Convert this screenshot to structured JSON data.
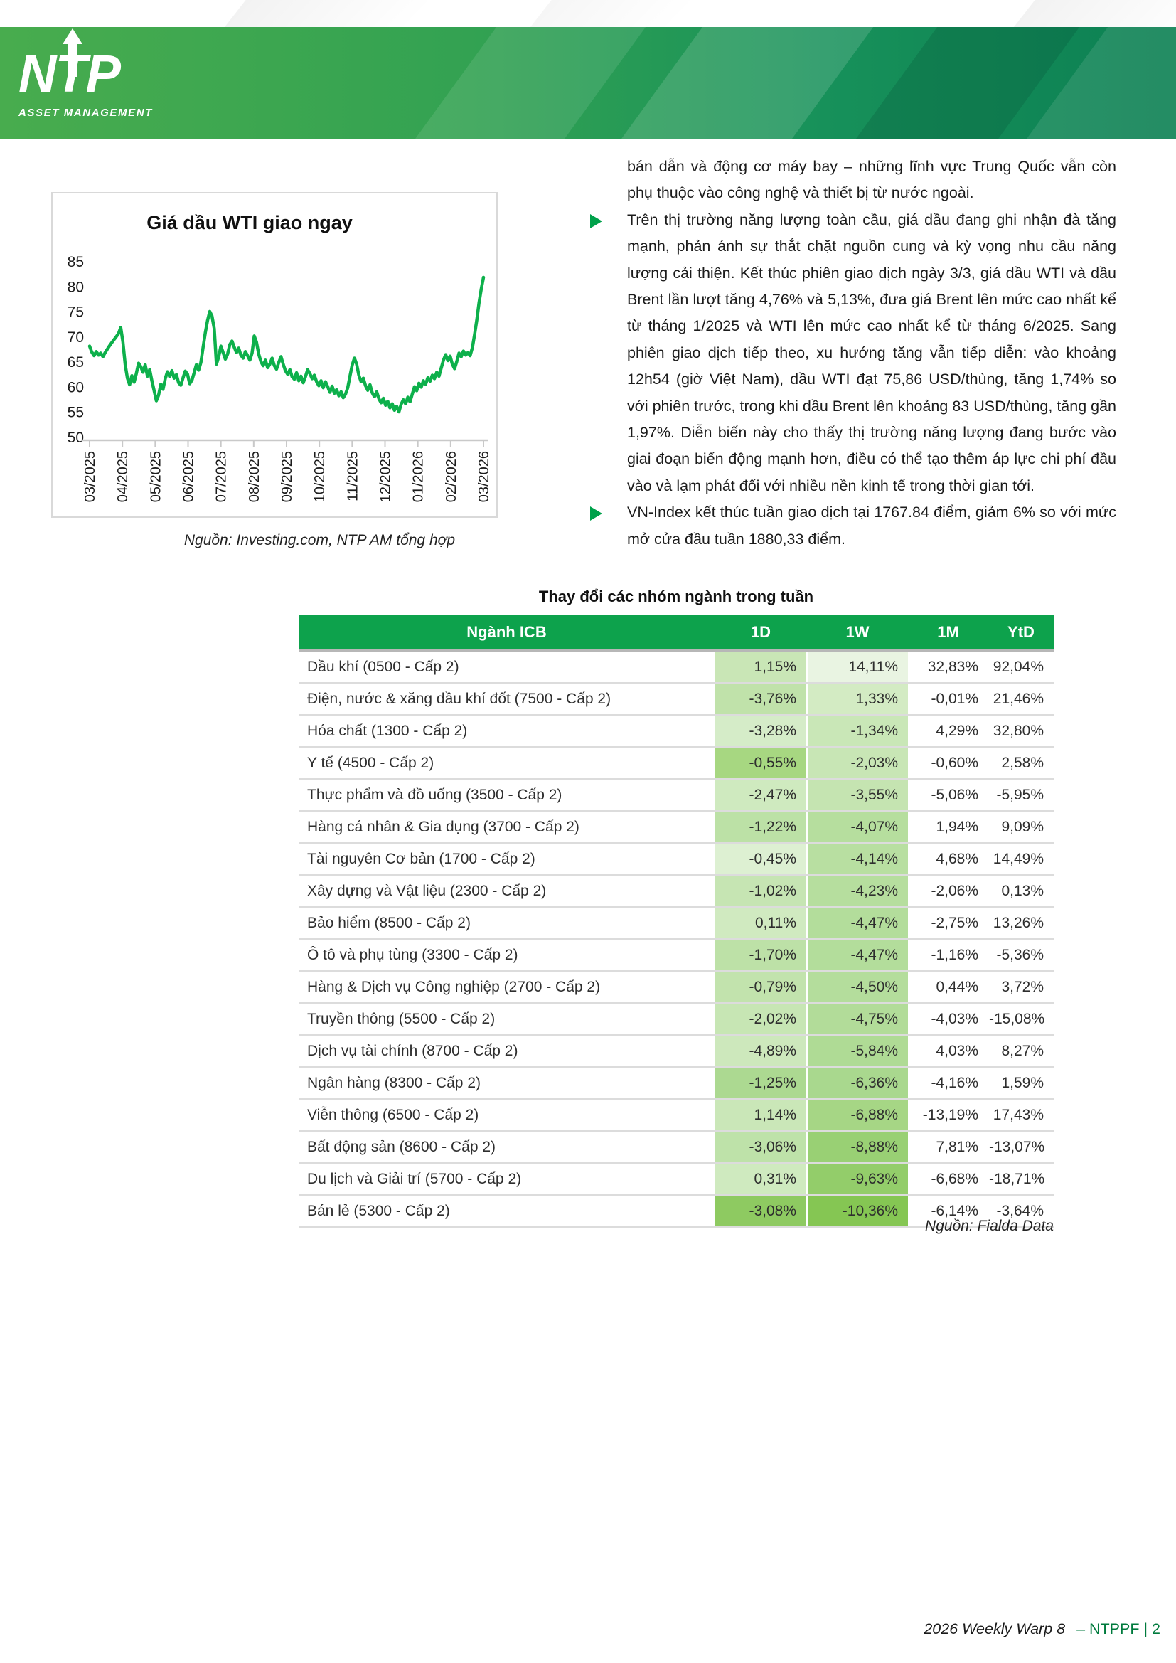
{
  "header": {
    "logo_text": "NTP",
    "logo_subtext": "ASSET MANAGEMENT"
  },
  "right_column": {
    "paragraphs": [
      {
        "bullet": false,
        "text": "bán dẫn và động cơ máy bay – những lĩnh vực Trung Quốc vẫn còn phụ thuộc vào công nghệ và thiết bị từ nước ngoài."
      },
      {
        "bullet": true,
        "text": "Trên thị trường năng lượng toàn cầu, giá dầu đang ghi nhận đà tăng mạnh, phản ánh sự thắt chặt nguồn cung và kỳ vọng nhu cầu năng lượng cải thiện. Kết thúc phiên giao dịch ngày 3/3, giá dầu WTI và dầu Brent lần lượt tăng 4,76% và 5,13%, đưa giá Brent lên mức cao nhất kể từ tháng 1/2025 và WTI lên mức cao nhất kể từ tháng 6/2025. Sang phiên giao dịch tiếp theo, xu hướng tăng vẫn tiếp diễn: vào khoảng 12h54 (giờ Việt Nam), dầu WTI đạt 75,86 USD/thùng, tăng 1,74% so với phiên trước, trong khi dầu Brent lên khoảng 83 USD/thùng, tăng gần 1,97%. Diễn biến này cho thấy thị trường năng lượng đang bước vào giai đoạn biến động mạnh hơn, điều có thể tạo thêm áp lực chi phí đầu vào và lạm phát đối với nhiều nền kinh tế trong thời gian tới."
      },
      {
        "bullet": true,
        "text": "VN-Index kết thúc tuần giao dịch tại 1767.84 điểm, giảm 6% so với mức mở cửa đầu tuần 1880,33 điểm."
      }
    ]
  },
  "chart_data": {
    "type": "line",
    "title": "Giá dầu WTI giao ngay",
    "source": "Nguồn: Investing.com, NTP AM tổng hợp",
    "x_labels": [
      "03/2025",
      "04/2025",
      "05/2025",
      "06/2025",
      "07/2025",
      "08/2025",
      "09/2025",
      "10/2025",
      "11/2025",
      "12/2025",
      "01/2026",
      "02/2026",
      "03/2026"
    ],
    "yticks": [
      85,
      80,
      75,
      70,
      65,
      60,
      55,
      50
    ],
    "ylim": [
      50,
      85
    ],
    "grid": false,
    "line_color": "#0db04b",
    "values": [
      68.2,
      67.0,
      66.3,
      67.1,
      66.4,
      66.8,
      66.1,
      66.9,
      67.6,
      68.3,
      68.9,
      69.5,
      70.1,
      70.7,
      71.9,
      69.0,
      64.5,
      61.8,
      60.5,
      62.3,
      61.0,
      62.7,
      64.8,
      64.1,
      63.0,
      64.5,
      62.2,
      63.5,
      61.3,
      59.3,
      57.3,
      58.4,
      60.6,
      59.6,
      61.7,
      63.1,
      62.1,
      63.3,
      61.8,
      62.5,
      60.9,
      60.4,
      61.9,
      63.2,
      62.6,
      60.7,
      61.4,
      62.9,
      64.5,
      63.4,
      64.9,
      67.9,
      70.9,
      73.3,
      75.1,
      74.2,
      71.7,
      64.6,
      66.0,
      68.2,
      66.9,
      65.6,
      66.6,
      68.5,
      69.2,
      68.0,
      66.9,
      67.8,
      66.4,
      65.8,
      67.1,
      66.3,
      65.4,
      66.8,
      70.2,
      69.0,
      66.6,
      65.1,
      64.3,
      65.4,
      63.9,
      64.6,
      65.8,
      64.3,
      63.6,
      64.9,
      66.1,
      64.6,
      63.3,
      62.6,
      63.5,
      62.1,
      61.6,
      62.9,
      61.3,
      62.2,
      60.9,
      62.1,
      63.5,
      62.7,
      61.7,
      62.4,
      61.1,
      60.3,
      61.3,
      59.9,
      61.1,
      60.1,
      59.0,
      60.2,
      58.8,
      59.5,
      58.3,
      59.1,
      57.9,
      58.6,
      59.9,
      62.2,
      64.4,
      65.8,
      64.6,
      62.4,
      61.1,
      61.8,
      60.3,
      59.4,
      60.5,
      58.9,
      58.1,
      59.1,
      57.7,
      56.9,
      57.8,
      56.4,
      57.2,
      55.9,
      56.7,
      55.4,
      56.2,
      55.1,
      56.6,
      57.5,
      56.7,
      58.0,
      57.1,
      58.6,
      60.1,
      59.3,
      60.8,
      60.0,
      61.3,
      60.6,
      61.9,
      61.2,
      62.4,
      61.7,
      63.0,
      62.2,
      63.8,
      65.4,
      66.5,
      65.3,
      66.2,
      64.6,
      63.7,
      65.1,
      66.8,
      66.1,
      67.2,
      66.4,
      66.9,
      66.3,
      67.9,
      70.5,
      73.4,
      76.8,
      79.6,
      81.9
    ]
  },
  "table": {
    "title": "Thay đổi các nhóm ngành trong tuần",
    "columns": [
      "Ngành ICB",
      "1D",
      "1W",
      "1M",
      "YtD"
    ],
    "source": "Nguồn: Fialda Data",
    "rows": [
      {
        "name": "Dầu khí (0500 - Cấp 2)",
        "d1": "1,15%",
        "w1": "14,11%",
        "m1": "32,83%",
        "ytd": "92,04%",
        "d1_bg": "#c9e6b6",
        "w1_bg": "#e9f4e2"
      },
      {
        "name": "Điện, nước & xăng dầu khí đốt (7500 - Cấp 2)",
        "d1": "-3,76%",
        "w1": "1,33%",
        "m1": "-0,01%",
        "ytd": "21,46%",
        "d1_bg": "#c0e2aa",
        "w1_bg": "#d3ebc3"
      },
      {
        "name": "Hóa chất (1300 - Cấp 2)",
        "d1": "-3,28%",
        "w1": "-1,34%",
        "m1": "4,29%",
        "ytd": "32,80%",
        "d1_bg": "#d5ecc8",
        "w1_bg": "#c9e7b7"
      },
      {
        "name": "Y tế (4500 - Cấp 2)",
        "d1": "-0,55%",
        "w1": "-2,03%",
        "m1": "-0,60%",
        "ytd": "2,58%",
        "d1_bg": "#a7d781",
        "w1_bg": "#c8e6b5"
      },
      {
        "name": "Thực phẩm và đồ uống (3500 - Cấp 2)",
        "d1": "-2,47%",
        "w1": "-3,55%",
        "m1": "-5,06%",
        "ytd": "-5,95%",
        "d1_bg": "#cfeabf",
        "w1_bg": "#c5e4b1"
      },
      {
        "name": "Hàng cá nhân & Gia dụng (3700 - Cấp 2)",
        "d1": "-1,22%",
        "w1": "-4,07%",
        "m1": "1,94%",
        "ytd": "9,09%",
        "d1_bg": "#bce1a6",
        "w1_bg": "#b6de9e"
      },
      {
        "name": "Tài nguyên Cơ bản (1700 - Cấp 2)",
        "d1": "-0,45%",
        "w1": "-4,14%",
        "m1": "4,68%",
        "ytd": "14,49%",
        "d1_bg": "#ddf0d2",
        "w1_bg": "#b8dfa1"
      },
      {
        "name": "Xây dựng và Vật liệu (2300 - Cấp 2)",
        "d1": "-1,02%",
        "w1": "-4,23%",
        "m1": "-2,06%",
        "ytd": "0,13%",
        "d1_bg": "#c6e5b3",
        "w1_bg": "#b6de9e"
      },
      {
        "name": "Bảo hiểm (8500 - Cấp 2)",
        "d1": "0,11%",
        "w1": "-4,47%",
        "m1": "-2,75%",
        "ytd": "13,26%",
        "d1_bg": "#d0eac0",
        "w1_bg": "#b3dd9b"
      },
      {
        "name": "Ô tô và phụ tùng (3300 - Cấp 2)",
        "d1": "-1,70%",
        "w1": "-4,47%",
        "m1": "-1,16%",
        "ytd": "-5,36%",
        "d1_bg": "#bde1a7",
        "w1_bg": "#b3dd9b"
      },
      {
        "name": "Hàng & Dịch vụ Công nghiệp (2700 - Cấp 2)",
        "d1": "-0,79%",
        "w1": "-4,50%",
        "m1": "0,44%",
        "ytd": "3,72%",
        "d1_bg": "#c2e3ad",
        "w1_bg": "#b4dd9c"
      },
      {
        "name": "Truyền thông (5500 - Cấp 2)",
        "d1": "-2,02%",
        "w1": "-4,75%",
        "m1": "-4,03%",
        "ytd": "-15,08%",
        "d1_bg": "#c7e6b4",
        "w1_bg": "#b2dc99"
      },
      {
        "name": "Dịch vụ tài chính (8700 - Cấp 2)",
        "d1": "-4,89%",
        "w1": "-5,84%",
        "m1": "4,03%",
        "ytd": "8,27%",
        "d1_bg": "#cde8bc",
        "w1_bg": "#afdb95"
      },
      {
        "name": "Ngân hàng (8300 - Cấp 2)",
        "d1": "-1,25%",
        "w1": "-6,36%",
        "m1": "-4,16%",
        "ytd": "1,59%",
        "d1_bg": "#acd991",
        "w1_bg": "#a9d88e"
      },
      {
        "name": "Viễn thông (6500 - Cấp 2)",
        "d1": "1,14%",
        "w1": "-6,88%",
        "m1": "-13,19%",
        "ytd": "17,43%",
        "d1_bg": "#cae7b8",
        "w1_bg": "#a6d685"
      },
      {
        "name": "Bất động sản (8600 - Cấp 2)",
        "d1": "-3,06%",
        "w1": "-8,88%",
        "m1": "7,81%",
        "ytd": "-13,07%",
        "d1_bg": "#bee2a9",
        "w1_bg": "#99d074"
      },
      {
        "name": "Du lịch và Giải trí (5700 - Cấp 2)",
        "d1": "0,31%",
        "w1": "-9,63%",
        "m1": "-6,68%",
        "ytd": "-18,71%",
        "d1_bg": "#cfeabf",
        "w1_bg": "#93cd6a"
      },
      {
        "name": "Bán lẻ (5300 - Cấp 2)",
        "d1": "-3,08%",
        "w1": "-10,36%",
        "m1": "-6,14%",
        "ytd": "-3,64%",
        "d1_bg": "#8eca61",
        "w1_bg": "#85c653"
      }
    ]
  },
  "footer": {
    "left": "2026 Weekly Warp 8",
    "right": "– NTPPF | 2"
  },
  "colors": {
    "table_header_green": "#0da24c",
    "chart_line_green": "#0db04b",
    "bullet_green": "#00a14b",
    "footer_green": "#007a3d",
    "banner_left": "#48ac4e",
    "banner_right": "#0c8053",
    "cell_border_gray": "#dcdcdc"
  }
}
